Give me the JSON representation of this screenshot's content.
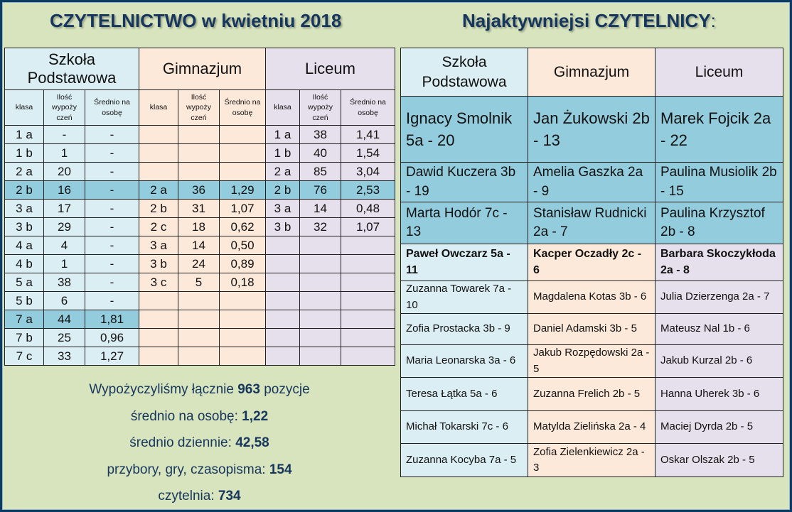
{
  "titles": {
    "left": "CZYTELNICTWO w kwietniu 2018",
    "right": "Najaktywniejsi CZYTELNICY",
    "right_suffix": ":"
  },
  "stats": {
    "groups": [
      "Szkoła Podstawowa",
      "Gimnazjum",
      "Liceum"
    ],
    "subheaders": [
      "klasa",
      "Ilość wypoży czeń",
      "Średnio na osobę"
    ],
    "rows": [
      {
        "sp": [
          "1 a",
          "-",
          "-"
        ],
        "gm": [
          "",
          "",
          ""
        ],
        "lc": [
          "1 a",
          "38",
          "1,41"
        ]
      },
      {
        "sp": [
          "1 b",
          "1",
          "-"
        ],
        "gm": [
          "",
          "",
          ""
        ],
        "lc": [
          "1 b",
          "40",
          "1,54"
        ]
      },
      {
        "sp": [
          "2 a",
          "20",
          "-"
        ],
        "gm": [
          "",
          "",
          ""
        ],
        "lc": [
          "2 a",
          "85",
          "3,04"
        ]
      },
      {
        "sp": [
          "2 b",
          "16",
          "-"
        ],
        "gm": [
          "2 a",
          "36",
          "1,29"
        ],
        "lc": [
          "2 b",
          "76",
          "2,53"
        ]
      },
      {
        "sp": [
          "3 a",
          "17",
          "-"
        ],
        "gm": [
          "2 b",
          "31",
          "1,07"
        ],
        "lc": [
          "3 a",
          "14",
          "0,48"
        ]
      },
      {
        "sp": [
          "3 b",
          "29",
          "-"
        ],
        "gm": [
          "2 c",
          "18",
          "0,62"
        ],
        "lc": [
          "3 b",
          "32",
          "1,07"
        ]
      },
      {
        "sp": [
          "4 a",
          "4",
          "-"
        ],
        "gm": [
          "3 a",
          "14",
          "0,50"
        ],
        "lc": [
          "",
          "",
          ""
        ]
      },
      {
        "sp": [
          "4 b",
          "1",
          "-"
        ],
        "gm": [
          "3 b",
          "24",
          "0,89"
        ],
        "lc": [
          "",
          "",
          ""
        ]
      },
      {
        "sp": [
          "5 a",
          "38",
          "-"
        ],
        "gm": [
          "3 c",
          "5",
          "0,18"
        ],
        "lc": [
          "",
          "",
          ""
        ]
      },
      {
        "sp": [
          "5 b",
          "6",
          "-"
        ],
        "gm": [
          "",
          "",
          ""
        ],
        "lc": [
          "",
          "",
          ""
        ]
      },
      {
        "sp": [
          "7 a",
          "44",
          "1,81"
        ],
        "gm": [
          "",
          "",
          ""
        ],
        "lc": [
          "",
          "",
          ""
        ]
      },
      {
        "sp": [
          "7 b",
          "25",
          "0,96"
        ],
        "gm": [
          "",
          "",
          ""
        ],
        "lc": [
          "",
          "",
          ""
        ]
      },
      {
        "sp": [
          "7 c",
          "33",
          "1,27"
        ],
        "gm": [
          "",
          "",
          ""
        ],
        "lc": [
          "",
          "",
          ""
        ]
      }
    ]
  },
  "summary": {
    "total_prefix": "Wypożyczyliśmy łącznie ",
    "total_value": "963",
    "total_suffix": " pozycje",
    "per_person_label": "średnio na osobę: ",
    "per_person_value": "1,22",
    "daily_label": "średnio dziennie: ",
    "daily_value": "42,58",
    "misc_label": "przybory, gry, czasopisma: ",
    "misc_value": "154",
    "reading_room_label": "czytelnia: ",
    "reading_room_value": "734"
  },
  "readers": {
    "headers": [
      "Szkoła Podstawowa",
      "Gimnazjum",
      "Liceum"
    ],
    "rows": [
      {
        "style": "big",
        "cells": [
          "Ignacy Smolnik 5a - 20",
          "Jan Żukowski 2b - 13",
          "Marek Fojcik 2a - 22"
        ]
      },
      {
        "style": "mid",
        "cells": [
          "Dawid Kuczera 3b - 19",
          "Amelia Gaszka 2a - 9",
          "Paulina Musiolik 2b - 15"
        ]
      },
      {
        "style": "mid",
        "cells": [
          "Marta Hodór 7c - 13",
          "Stanisław Rudnicki 2a - 7",
          "Paulina Krzysztof 2b - 8"
        ]
      },
      {
        "style": "bold",
        "cells": [
          "Paweł Owczarz 5a - 11",
          "Kacper Oczadły 2c - 6",
          "Barbara Skoczykłoda 2a - 8"
        ]
      },
      {
        "style": "small",
        "cells": [
          "Zuzanna Towarek 7a - 10",
          "Magdalena Kotas 3b - 6",
          "Julia Dzierzenga 2a - 7"
        ]
      },
      {
        "style": "small",
        "cells": [
          "Zofia Prostacka 3b - 9",
          "Daniel Adamski 3b - 5",
          "Mateusz Nal 1b - 6"
        ]
      },
      {
        "style": "small",
        "cells": [
          "Maria Leonarska 3a - 6",
          "Jakub Rozpędowski 2a - 5",
          "Jakub Kurzal 2b - 6"
        ]
      },
      {
        "style": "small",
        "cells": [
          "Teresa Łątka 5a - 6",
          "Zuzanna Frelich 2b - 5",
          "Hanna Uherek 3b - 6"
        ]
      },
      {
        "style": "small",
        "cells": [
          "Michał Tokarski 7c - 6",
          "Matylda Zielińska 2a - 4",
          "Maciej Dyrda 2b - 5"
        ]
      },
      {
        "style": "small",
        "cells": [
          "Zuzanna Kocyba 7a - 5",
          "Zofia Zielenkiewicz 2a - 3",
          "Oskar Olszak 2b - 5"
        ]
      }
    ]
  }
}
